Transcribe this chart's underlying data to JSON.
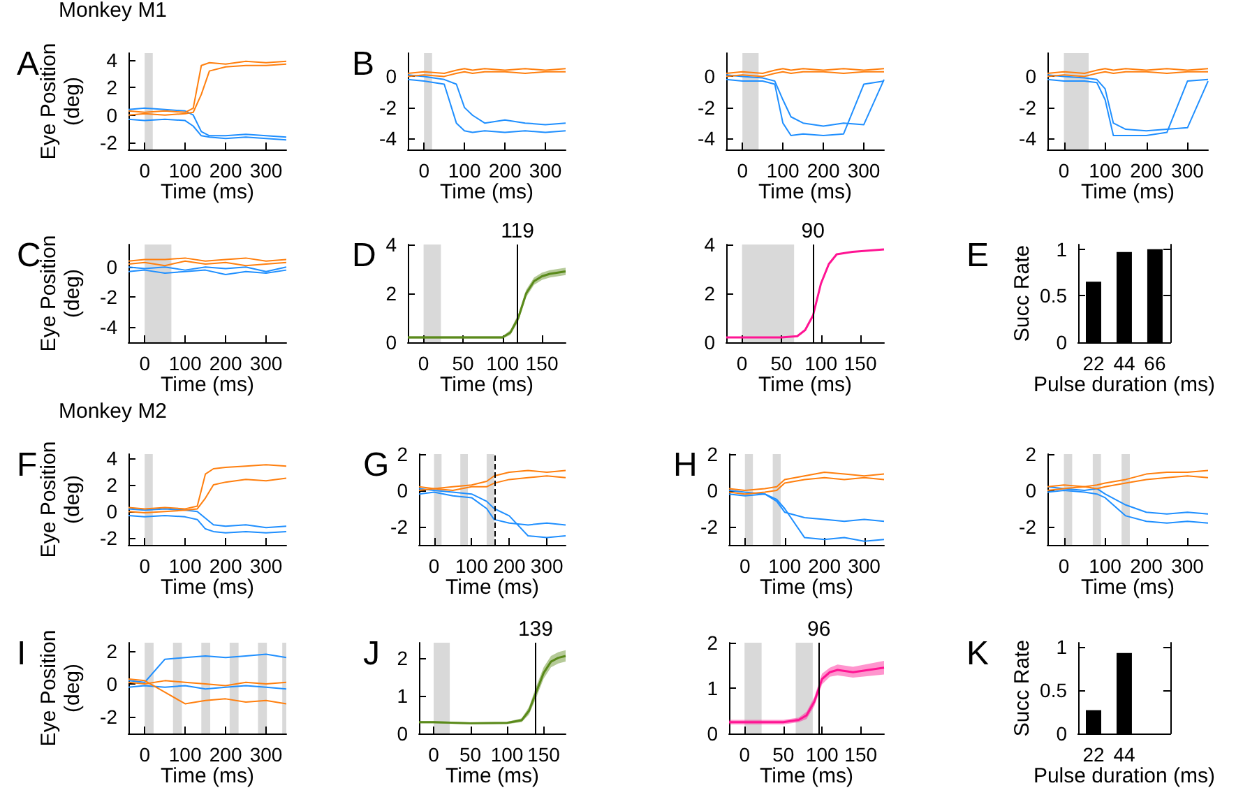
{
  "chart_data": [
    {
      "type": "line",
      "annotations": [
        "A",
        "Monkey M1"
      ],
      "xlabel": "Time (ms)",
      "ylabel": "Eye Position (deg)",
      "xlim": [
        -40,
        350
      ],
      "xticks": [
        0,
        100,
        200,
        300
      ],
      "ylim": [
        -2.5,
        4.5
      ],
      "yticks": [
        -2,
        0,
        2,
        4
      ],
      "grid": false,
      "marker": "none",
      "bands": [
        {
          "axis": "x",
          "from": 0,
          "to": 20,
          "color": "#d9d9d9"
        }
      ],
      "x": [
        -40,
        0,
        50,
        100,
        120,
        140,
        160,
        200,
        250,
        300,
        350
      ],
      "series": [
        {
          "color": "#1f8fff",
          "values": [
            -0.3,
            -0.4,
            -0.3,
            -0.4,
            -0.8,
            -1.5,
            -1.6,
            -1.7,
            -1.6,
            -1.7,
            -1.8
          ]
        },
        {
          "color": "#1f8fff",
          "values": [
            0.4,
            0.5,
            0.4,
            0.3,
            0,
            -1.2,
            -1.5,
            -1.5,
            -1.4,
            -1.5,
            -1.6
          ]
        },
        {
          "color": "#ff7f0e",
          "values": [
            0.3,
            0.2,
            0.3,
            0.2,
            0.5,
            3.6,
            3.8,
            3.7,
            3.9,
            3.8,
            3.9
          ]
        },
        {
          "color": "#ff7f0e",
          "values": [
            0,
            0.1,
            0,
            0.1,
            0.2,
            1.5,
            3.2,
            3.5,
            3.6,
            3.6,
            3.7
          ]
        }
      ]
    },
    {
      "type": "line",
      "annotations": [
        "B"
      ],
      "xlabel": "Time (ms)",
      "xlim": [
        -40,
        350
      ],
      "xticks": [
        0,
        100,
        200,
        300
      ],
      "ylim": [
        -4.7,
        1.5
      ],
      "yticks": [
        -4,
        -2,
        0
      ],
      "grid": false,
      "marker": "none",
      "bands": [
        {
          "axis": "x",
          "from": 0,
          "to": 20,
          "color": "#d9d9d9"
        }
      ],
      "x": [
        -40,
        0,
        50,
        80,
        100,
        120,
        150,
        200,
        250,
        300,
        350
      ],
      "series": [
        {
          "color": "#1f8fff",
          "values": [
            -0.2,
            -0.3,
            -0.5,
            -3.0,
            -3.5,
            -3.6,
            -3.5,
            -3.6,
            -3.5,
            -3.6,
            -3.5
          ]
        },
        {
          "color": "#1f8fff",
          "values": [
            0.1,
            0,
            -0.2,
            -0.5,
            -2.0,
            -2.5,
            -3.0,
            -2.8,
            -3.0,
            -3.1,
            -3.0
          ]
        },
        {
          "color": "#ff7f0e",
          "values": [
            0.2,
            0.3,
            0.2,
            0.4,
            0.5,
            0.4,
            0.5,
            0.4,
            0.5,
            0.4,
            0.5
          ]
        },
        {
          "color": "#ff7f0e",
          "values": [
            0,
            0.1,
            0,
            0.2,
            0.3,
            0.2,
            0.3,
            0.3,
            0.2,
            0.3,
            0.3
          ]
        }
      ]
    },
    {
      "type": "line",
      "xlabel": "Time (ms)",
      "xlim": [
        -40,
        350
      ],
      "xticks": [
        0,
        100,
        200,
        300
      ],
      "ylim": [
        -4.7,
        1.5
      ],
      "yticks": [
        -4,
        -2,
        0
      ],
      "grid": false,
      "marker": "none",
      "bands": [
        {
          "axis": "x",
          "from": 0,
          "to": 40,
          "color": "#d9d9d9"
        }
      ],
      "x": [
        -40,
        0,
        50,
        80,
        100,
        120,
        150,
        200,
        250,
        300,
        350
      ],
      "series": [
        {
          "color": "#1f8fff",
          "values": [
            -0.2,
            -0.3,
            -0.3,
            -0.5,
            -3.0,
            -3.8,
            -3.7,
            -3.8,
            -3.7,
            -0.5,
            -0.3
          ]
        },
        {
          "color": "#1f8fff",
          "values": [
            0.1,
            0,
            -0.1,
            -0.3,
            -1.5,
            -2.6,
            -3.0,
            -3.2,
            -3.0,
            -3.1,
            -0.2
          ]
        },
        {
          "color": "#ff7f0e",
          "values": [
            0.2,
            0.3,
            0.2,
            0.4,
            0.5,
            0.4,
            0.5,
            0.4,
            0.5,
            0.4,
            0.5
          ]
        },
        {
          "color": "#ff7f0e",
          "values": [
            0,
            0.1,
            0,
            0.2,
            0.3,
            0.2,
            0.3,
            0.3,
            0.2,
            0.3,
            0.3
          ]
        }
      ]
    },
    {
      "type": "line",
      "xlabel": "Time (ms)",
      "xlim": [
        -40,
        350
      ],
      "xticks": [
        0,
        100,
        200,
        300
      ],
      "ylim": [
        -4.7,
        1.5
      ],
      "yticks": [
        -4,
        -2,
        0
      ],
      "grid": false,
      "marker": "none",
      "bands": [
        {
          "axis": "x",
          "from": 0,
          "to": 60,
          "color": "#d9d9d9"
        }
      ],
      "x": [
        -40,
        0,
        50,
        80,
        100,
        120,
        150,
        200,
        250,
        300,
        350
      ],
      "series": [
        {
          "color": "#1f8fff",
          "values": [
            -0.2,
            -0.3,
            -0.3,
            -0.4,
            -1.5,
            -3.8,
            -3.8,
            -3.8,
            -3.6,
            -0.3,
            -0.2
          ]
        },
        {
          "color": "#1f8fff",
          "values": [
            0.1,
            0,
            -0.1,
            -0.2,
            -0.8,
            -3.0,
            -3.4,
            -3.5,
            -3.4,
            -3.3,
            -0.3
          ]
        },
        {
          "color": "#ff7f0e",
          "values": [
            0.2,
            0.3,
            0.2,
            0.4,
            0.5,
            0.4,
            0.5,
            0.4,
            0.5,
            0.4,
            0.5
          ]
        },
        {
          "color": "#ff7f0e",
          "values": [
            0,
            0.1,
            0,
            0.2,
            0.3,
            0.2,
            0.3,
            0.3,
            0.2,
            0.3,
            0.3
          ]
        }
      ]
    },
    {
      "type": "line",
      "annotations": [
        "C"
      ],
      "xlabel": "Time (ms)",
      "ylabel": "Eye Position (deg)",
      "xlim": [
        -40,
        350
      ],
      "xticks": [
        0,
        100,
        200,
        300
      ],
      "ylim": [
        -5,
        1.5
      ],
      "yticks": [
        -4,
        -2,
        0
      ],
      "grid": false,
      "marker": "none",
      "bands": [
        {
          "axis": "x",
          "from": 0,
          "to": 66,
          "color": "#d9d9d9"
        }
      ],
      "x": [
        -40,
        0,
        50,
        100,
        150,
        200,
        250,
        300,
        350
      ],
      "series": [
        {
          "color": "#1f8fff",
          "values": [
            -0.3,
            -0.2,
            -0.4,
            -0.3,
            -0.2,
            -0.5,
            -0.3,
            -0.4,
            -0.2
          ]
        },
        {
          "color": "#1f8fff",
          "values": [
            0,
            -0.1,
            0,
            -0.2,
            0,
            -0.1,
            0,
            -0.3,
            0
          ]
        },
        {
          "color": "#ff7f0e",
          "values": [
            0.2,
            0.3,
            0.1,
            0.4,
            0.2,
            0.3,
            0.1,
            0.2,
            0.3
          ]
        },
        {
          "color": "#ff7f0e",
          "values": [
            0.4,
            0.5,
            0.5,
            0.6,
            0.4,
            0.5,
            0.6,
            0.4,
            0.5
          ]
        }
      ]
    },
    {
      "type": "line",
      "annotations": [
        "D"
      ],
      "xlabel": "Time (ms)",
      "xlim": [
        -20,
        180
      ],
      "xticks": [
        0,
        50,
        100,
        150
      ],
      "ylim": [
        0,
        4
      ],
      "yticks": [
        0,
        2,
        4
      ],
      "grid": false,
      "marker": "none",
      "bands": [
        {
          "axis": "x",
          "from": 0,
          "to": 22,
          "color": "#d9d9d9"
        }
      ],
      "ref_lines": [
        {
          "axis": "x",
          "value": 119,
          "label": "119"
        }
      ],
      "x": [
        -20,
        0,
        50,
        100,
        110,
        120,
        130,
        140,
        150,
        160,
        180
      ],
      "series": [
        {
          "color": "#5a8a1a",
          "values": [
            0.2,
            0.2,
            0.2,
            0.2,
            0.4,
            1.0,
            2.0,
            2.5,
            2.7,
            2.8,
            2.9
          ],
          "lower": [
            0.15,
            0.15,
            0.15,
            0.15,
            0.3,
            0.85,
            1.85,
            2.35,
            2.55,
            2.65,
            2.75
          ],
          "upper": [
            0.25,
            0.25,
            0.25,
            0.25,
            0.5,
            1.15,
            2.15,
            2.65,
            2.85,
            2.95,
            3.05
          ]
        }
      ]
    },
    {
      "type": "line",
      "xlabel": "Time (ms)",
      "xlim": [
        -20,
        180
      ],
      "xticks": [
        0,
        50,
        100,
        150
      ],
      "ylim": [
        0,
        4
      ],
      "yticks": [
        0,
        2,
        4
      ],
      "grid": false,
      "marker": "none",
      "bands": [
        {
          "axis": "x",
          "from": 0,
          "to": 66,
          "color": "#d9d9d9"
        }
      ],
      "ref_lines": [
        {
          "axis": "x",
          "value": 90,
          "label": "90"
        }
      ],
      "x": [
        -20,
        0,
        50,
        70,
        80,
        90,
        100,
        110,
        120,
        140,
        180
      ],
      "series": [
        {
          "color": "#ff1493",
          "values": [
            0.2,
            0.2,
            0.2,
            0.25,
            0.5,
            1.1,
            2.4,
            3.2,
            3.6,
            3.7,
            3.8
          ]
        }
      ]
    },
    {
      "type": "bar",
      "annotations": [
        "E"
      ],
      "xlabel": "Pulse duration (ms)",
      "ylabel": "Succ Rate",
      "categories": [
        "22",
        "44",
        "66"
      ],
      "values": [
        0.65,
        0.97,
        1.0
      ],
      "color": "#000000",
      "ylim": [
        0,
        1.05
      ],
      "yticks": [
        0,
        0.5,
        1
      ],
      "grid": false
    },
    {
      "type": "line",
      "annotations": [
        "F",
        "Monkey M2"
      ],
      "xlabel": "Time (ms)",
      "ylabel": "Eye Position (deg)",
      "xlim": [
        -40,
        350
      ],
      "xticks": [
        0,
        100,
        200,
        300
      ],
      "ylim": [
        -2.5,
        4.3
      ],
      "yticks": [
        -2,
        0,
        2,
        4
      ],
      "grid": false,
      "marker": "none",
      "bands": [
        {
          "axis": "x",
          "from": 0,
          "to": 20,
          "color": "#d9d9d9"
        }
      ],
      "x": [
        -40,
        0,
        50,
        100,
        130,
        150,
        170,
        200,
        250,
        300,
        350
      ],
      "series": [
        {
          "color": "#1f8fff",
          "values": [
            -0.3,
            -0.4,
            -0.3,
            -0.4,
            -0.6,
            -1.3,
            -1.5,
            -1.6,
            -1.5,
            -1.6,
            -1.5
          ]
        },
        {
          "color": "#1f8fff",
          "values": [
            0.2,
            0.1,
            0.2,
            0.1,
            0,
            -0.5,
            -1.0,
            -1.1,
            -1.0,
            -1.2,
            -1.1
          ]
        },
        {
          "color": "#ff7f0e",
          "values": [
            0.3,
            0.2,
            0.3,
            0.2,
            0.4,
            2.8,
            3.2,
            3.3,
            3.4,
            3.5,
            3.4
          ]
        },
        {
          "color": "#ff7f0e",
          "values": [
            0,
            -0.1,
            0,
            0.1,
            0.2,
            1.0,
            2.0,
            2.2,
            2.4,
            2.3,
            2.5
          ]
        }
      ]
    },
    {
      "type": "line",
      "annotations": [
        "G"
      ],
      "xlabel": "Time (ms)",
      "xlim": [
        -40,
        350
      ],
      "xticks": [
        0,
        100,
        200,
        300
      ],
      "ylim": [
        -3,
        2
      ],
      "yticks": [
        -2,
        0,
        2
      ],
      "grid": false,
      "marker": "none",
      "bands": [
        {
          "axis": "x",
          "from": 0,
          "to": 20,
          "color": "#d9d9d9"
        },
        {
          "axis": "x",
          "from": 70,
          "to": 90,
          "color": "#d9d9d9"
        },
        {
          "axis": "x",
          "from": 140,
          "to": 160,
          "color": "#d9d9d9"
        }
      ],
      "ref_lines": [
        {
          "axis": "x",
          "value": 160,
          "line_style": "dashed"
        }
      ],
      "x": [
        -40,
        0,
        50,
        100,
        140,
        160,
        200,
        250,
        300,
        350
      ],
      "series": [
        {
          "color": "#1f8fff",
          "values": [
            -0.2,
            -0.1,
            -0.3,
            -0.4,
            -1.0,
            -1.6,
            -1.8,
            -1.9,
            -1.8,
            -1.9
          ]
        },
        {
          "color": "#1f8fff",
          "values": [
            0.1,
            0,
            -0.1,
            -0.2,
            -0.6,
            -1.0,
            -1.4,
            -2.5,
            -2.6,
            -2.5
          ]
        },
        {
          "color": "#ff7f0e",
          "values": [
            0.2,
            0.1,
            0.2,
            0.3,
            0.5,
            0.8,
            1.0,
            1.1,
            1.0,
            1.1
          ]
        },
        {
          "color": "#ff7f0e",
          "values": [
            0,
            0.1,
            0,
            0.2,
            0.2,
            0.4,
            0.6,
            0.7,
            0.8,
            0.7
          ]
        }
      ]
    },
    {
      "type": "line",
      "annotations": [
        "H"
      ],
      "xlabel": "Time (ms)",
      "xlim": [
        -40,
        350
      ],
      "xticks": [
        0,
        100,
        200,
        300
      ],
      "ylim": [
        -3,
        2
      ],
      "yticks": [
        -2,
        0,
        2
      ],
      "grid": false,
      "marker": "none",
      "bands": [
        {
          "axis": "x",
          "from": 0,
          "to": 20,
          "color": "#d9d9d9"
        },
        {
          "axis": "x",
          "from": 70,
          "to": 90,
          "color": "#d9d9d9"
        }
      ],
      "x": [
        -40,
        0,
        50,
        80,
        100,
        150,
        200,
        250,
        300,
        350
      ],
      "series": [
        {
          "color": "#1f8fff",
          "values": [
            -0.2,
            -0.3,
            -0.2,
            -0.6,
            -1.2,
            -1.5,
            -1.6,
            -1.7,
            -1.6,
            -1.7
          ]
        },
        {
          "color": "#1f8fff",
          "values": [
            0,
            -0.1,
            -0.2,
            -0.5,
            -1.0,
            -2.6,
            -2.7,
            -2.6,
            -2.8,
            -2.7
          ]
        },
        {
          "color": "#ff7f0e",
          "values": [
            0.1,
            0,
            0.1,
            0.2,
            0.6,
            0.8,
            1.0,
            0.9,
            0.8,
            0.9
          ]
        },
        {
          "color": "#ff7f0e",
          "values": [
            -0.1,
            -0.2,
            -0.1,
            0,
            0.4,
            0.6,
            0.7,
            0.6,
            0.7,
            0.6
          ]
        }
      ]
    },
    {
      "type": "line",
      "xlabel": "Time (ms)",
      "xlim": [
        -40,
        350
      ],
      "xticks": [
        0,
        100,
        200,
        300
      ],
      "ylim": [
        -3,
        2
      ],
      "yticks": [
        -2,
        0,
        2
      ],
      "grid": false,
      "marker": "none",
      "bands": [
        {
          "axis": "x",
          "from": 0,
          "to": 20,
          "color": "#d9d9d9"
        },
        {
          "axis": "x",
          "from": 70,
          "to": 90,
          "color": "#d9d9d9"
        },
        {
          "axis": "x",
          "from": 140,
          "to": 160,
          "color": "#d9d9d9"
        }
      ],
      "x": [
        -40,
        0,
        50,
        80,
        100,
        150,
        200,
        250,
        300,
        350
      ],
      "series": [
        {
          "color": "#1f8fff",
          "values": [
            -0.1,
            0,
            -0.1,
            -0.2,
            -0.4,
            -1.4,
            -1.7,
            -1.8,
            -1.7,
            -1.8
          ]
        },
        {
          "color": "#1f8fff",
          "values": [
            0.2,
            0.1,
            0,
            0.1,
            -0.2,
            -0.8,
            -1.2,
            -1.3,
            -1.2,
            -1.3
          ]
        },
        {
          "color": "#ff7f0e",
          "values": [
            0.2,
            0.3,
            0.2,
            0.3,
            0.4,
            0.6,
            0.9,
            1.0,
            1.0,
            1.1
          ]
        },
        {
          "color": "#ff7f0e",
          "values": [
            0,
            0.1,
            0.2,
            0.1,
            0.2,
            0.4,
            0.6,
            0.7,
            0.8,
            0.7
          ]
        }
      ]
    },
    {
      "type": "line",
      "annotations": [
        "I"
      ],
      "xlabel": "Time (ms)",
      "ylabel": "Eye Position (deg)",
      "xlim": [
        -40,
        350
      ],
      "xticks": [
        0,
        100,
        200,
        300
      ],
      "ylim": [
        -3,
        2.5
      ],
      "yticks": [
        -2,
        0,
        2
      ],
      "grid": false,
      "marker": "none",
      "bands": [
        {
          "axis": "x",
          "from": 0,
          "to": 22,
          "color": "#d9d9d9"
        },
        {
          "axis": "x",
          "from": 70,
          "to": 92,
          "color": "#d9d9d9"
        },
        {
          "axis": "x",
          "from": 140,
          "to": 162,
          "color": "#d9d9d9"
        },
        {
          "axis": "x",
          "from": 210,
          "to": 232,
          "color": "#d9d9d9"
        },
        {
          "axis": "x",
          "from": 280,
          "to": 302,
          "color": "#d9d9d9"
        },
        {
          "axis": "x",
          "from": 340,
          "to": 350,
          "color": "#d9d9d9"
        }
      ],
      "x": [
        -40,
        0,
        50,
        100,
        150,
        200,
        250,
        300,
        350
      ],
      "series": [
        {
          "color": "#1f8fff",
          "values": [
            0.2,
            0.1,
            1.5,
            1.6,
            1.7,
            1.6,
            1.7,
            1.8,
            1.6
          ]
        },
        {
          "color": "#1f8fff",
          "values": [
            -0.2,
            -0.1,
            -0.2,
            -0.1,
            -0.3,
            -0.2,
            -0.1,
            -0.2,
            -0.3
          ]
        },
        {
          "color": "#ff7f0e",
          "values": [
            0.3,
            0.2,
            -0.5,
            -1.2,
            -1.0,
            -0.9,
            -1.1,
            -1.0,
            -1.2
          ]
        },
        {
          "color": "#ff7f0e",
          "values": [
            0.1,
            0,
            0.2,
            0.1,
            0,
            -0.1,
            0.1,
            0,
            0.1
          ]
        }
      ]
    },
    {
      "type": "line",
      "annotations": [
        "J"
      ],
      "xlabel": "Time (ms)",
      "xlim": [
        -20,
        180
      ],
      "xticks": [
        0,
        50,
        100,
        150
      ],
      "ylim": [
        0,
        2.4
      ],
      "yticks": [
        0,
        1,
        2
      ],
      "grid": false,
      "marker": "none",
      "bands": [
        {
          "axis": "x",
          "from": 0,
          "to": 22,
          "color": "#d9d9d9"
        }
      ],
      "ref_lines": [
        {
          "axis": "x",
          "value": 139,
          "label": "139"
        }
      ],
      "x": [
        -20,
        0,
        50,
        100,
        120,
        130,
        140,
        150,
        160,
        170,
        180
      ],
      "series": [
        {
          "color": "#5a8a1a",
          "values": [
            0.3,
            0.3,
            0.27,
            0.28,
            0.35,
            0.6,
            1.1,
            1.6,
            1.9,
            2.0,
            2.05
          ],
          "lower": [
            0.27,
            0.27,
            0.24,
            0.25,
            0.3,
            0.5,
            0.95,
            1.45,
            1.75,
            1.85,
            1.9
          ],
          "upper": [
            0.33,
            0.33,
            0.3,
            0.31,
            0.4,
            0.7,
            1.25,
            1.75,
            2.05,
            2.15,
            2.2
          ]
        }
      ]
    },
    {
      "type": "line",
      "xlabel": "Time (ms)",
      "xlim": [
        -20,
        180
      ],
      "xticks": [
        0,
        50,
        100,
        150
      ],
      "ylim": [
        0,
        2
      ],
      "yticks": [
        0,
        1,
        2
      ],
      "grid": false,
      "marker": "none",
      "bands": [
        {
          "axis": "x",
          "from": 0,
          "to": 22,
          "color": "#d9d9d9"
        },
        {
          "axis": "x",
          "from": 66,
          "to": 88,
          "color": "#d9d9d9"
        }
      ],
      "ref_lines": [
        {
          "axis": "x",
          "value": 96,
          "label": "96"
        }
      ],
      "x": [
        -20,
        0,
        50,
        70,
        80,
        90,
        100,
        110,
        120,
        140,
        180
      ],
      "series": [
        {
          "color": "#ff1493",
          "values": [
            0.25,
            0.25,
            0.25,
            0.3,
            0.4,
            0.7,
            1.2,
            1.35,
            1.4,
            1.35,
            1.45
          ],
          "lower": [
            0.2,
            0.2,
            0.2,
            0.25,
            0.32,
            0.6,
            1.08,
            1.25,
            1.28,
            1.23,
            1.3
          ],
          "upper": [
            0.3,
            0.3,
            0.3,
            0.35,
            0.48,
            0.8,
            1.32,
            1.45,
            1.52,
            1.47,
            1.6
          ]
        }
      ]
    },
    {
      "type": "bar",
      "annotations": [
        "K"
      ],
      "xlabel": "Pulse duration (ms)",
      "ylabel": "Succ Rate",
      "categories": [
        "22",
        "44",
        null
      ],
      "values": [
        0.27,
        0.93,
        null
      ],
      "color": "#000000",
      "ylim": [
        0,
        1.05
      ],
      "yticks": [
        0,
        0.5,
        1
      ],
      "grid": false
    }
  ]
}
